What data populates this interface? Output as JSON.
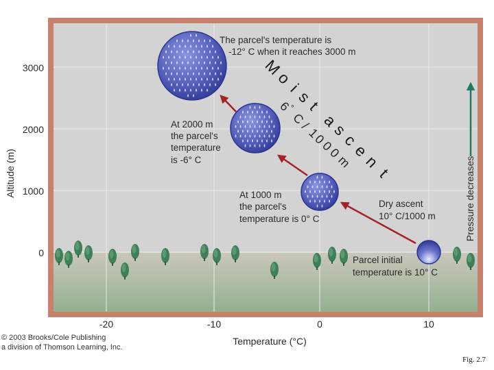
{
  "figure": {
    "caption": "Fig. 2.7",
    "copyright": [
      "© 2003 Brooks/Cole Publishing",
      "a division of Thomson Learning, Inc."
    ]
  },
  "axes": {
    "ylabel": "Altitude (m)",
    "xlabel": "Temperature (°C)",
    "xticks": [
      "-20",
      "-10",
      "0",
      "10"
    ],
    "yticks": [
      "3000",
      "2000",
      "1000",
      "0"
    ],
    "right_label": "Pressure decreases"
  },
  "parcels": [
    {
      "temperature_c": 10,
      "altitude_m": 0,
      "label": [
        "Parcel initial",
        "temperature is 10° C"
      ]
    },
    {
      "temperature_c": 0,
      "altitude_m": 1000,
      "label": [
        "At 1000 m",
        "the parcel's",
        "temperature is 0° C"
      ]
    },
    {
      "temperature_c": -6,
      "altitude_m": 2000,
      "label": [
        "At 2000 m",
        "the parcel's",
        "temperature",
        "is -6° C"
      ]
    },
    {
      "temperature_c": -12,
      "altitude_m": 3000,
      "label": [
        "The parcel's temperature is",
        "-12° C when it reaches 3000 m"
      ]
    }
  ],
  "dry_ascent": [
    "Dry ascent",
    "10° C/1000 m"
  ],
  "moist_ascent": {
    "letters": [
      "M",
      "o",
      "i",
      "s",
      "t",
      "a",
      "s",
      "c",
      "e",
      "n",
      "t"
    ],
    "rate_letters": [
      "6",
      "°",
      "C",
      "/",
      "1",
      "0",
      "0",
      "0",
      "m"
    ]
  },
  "colors": {
    "frame": "#c8826c",
    "sky": "#d3d3d3",
    "ground": "#9fb89b",
    "parcel": "#4a55b0",
    "arrow": "#a52226",
    "pressure_arrow": "#1f7a62"
  }
}
